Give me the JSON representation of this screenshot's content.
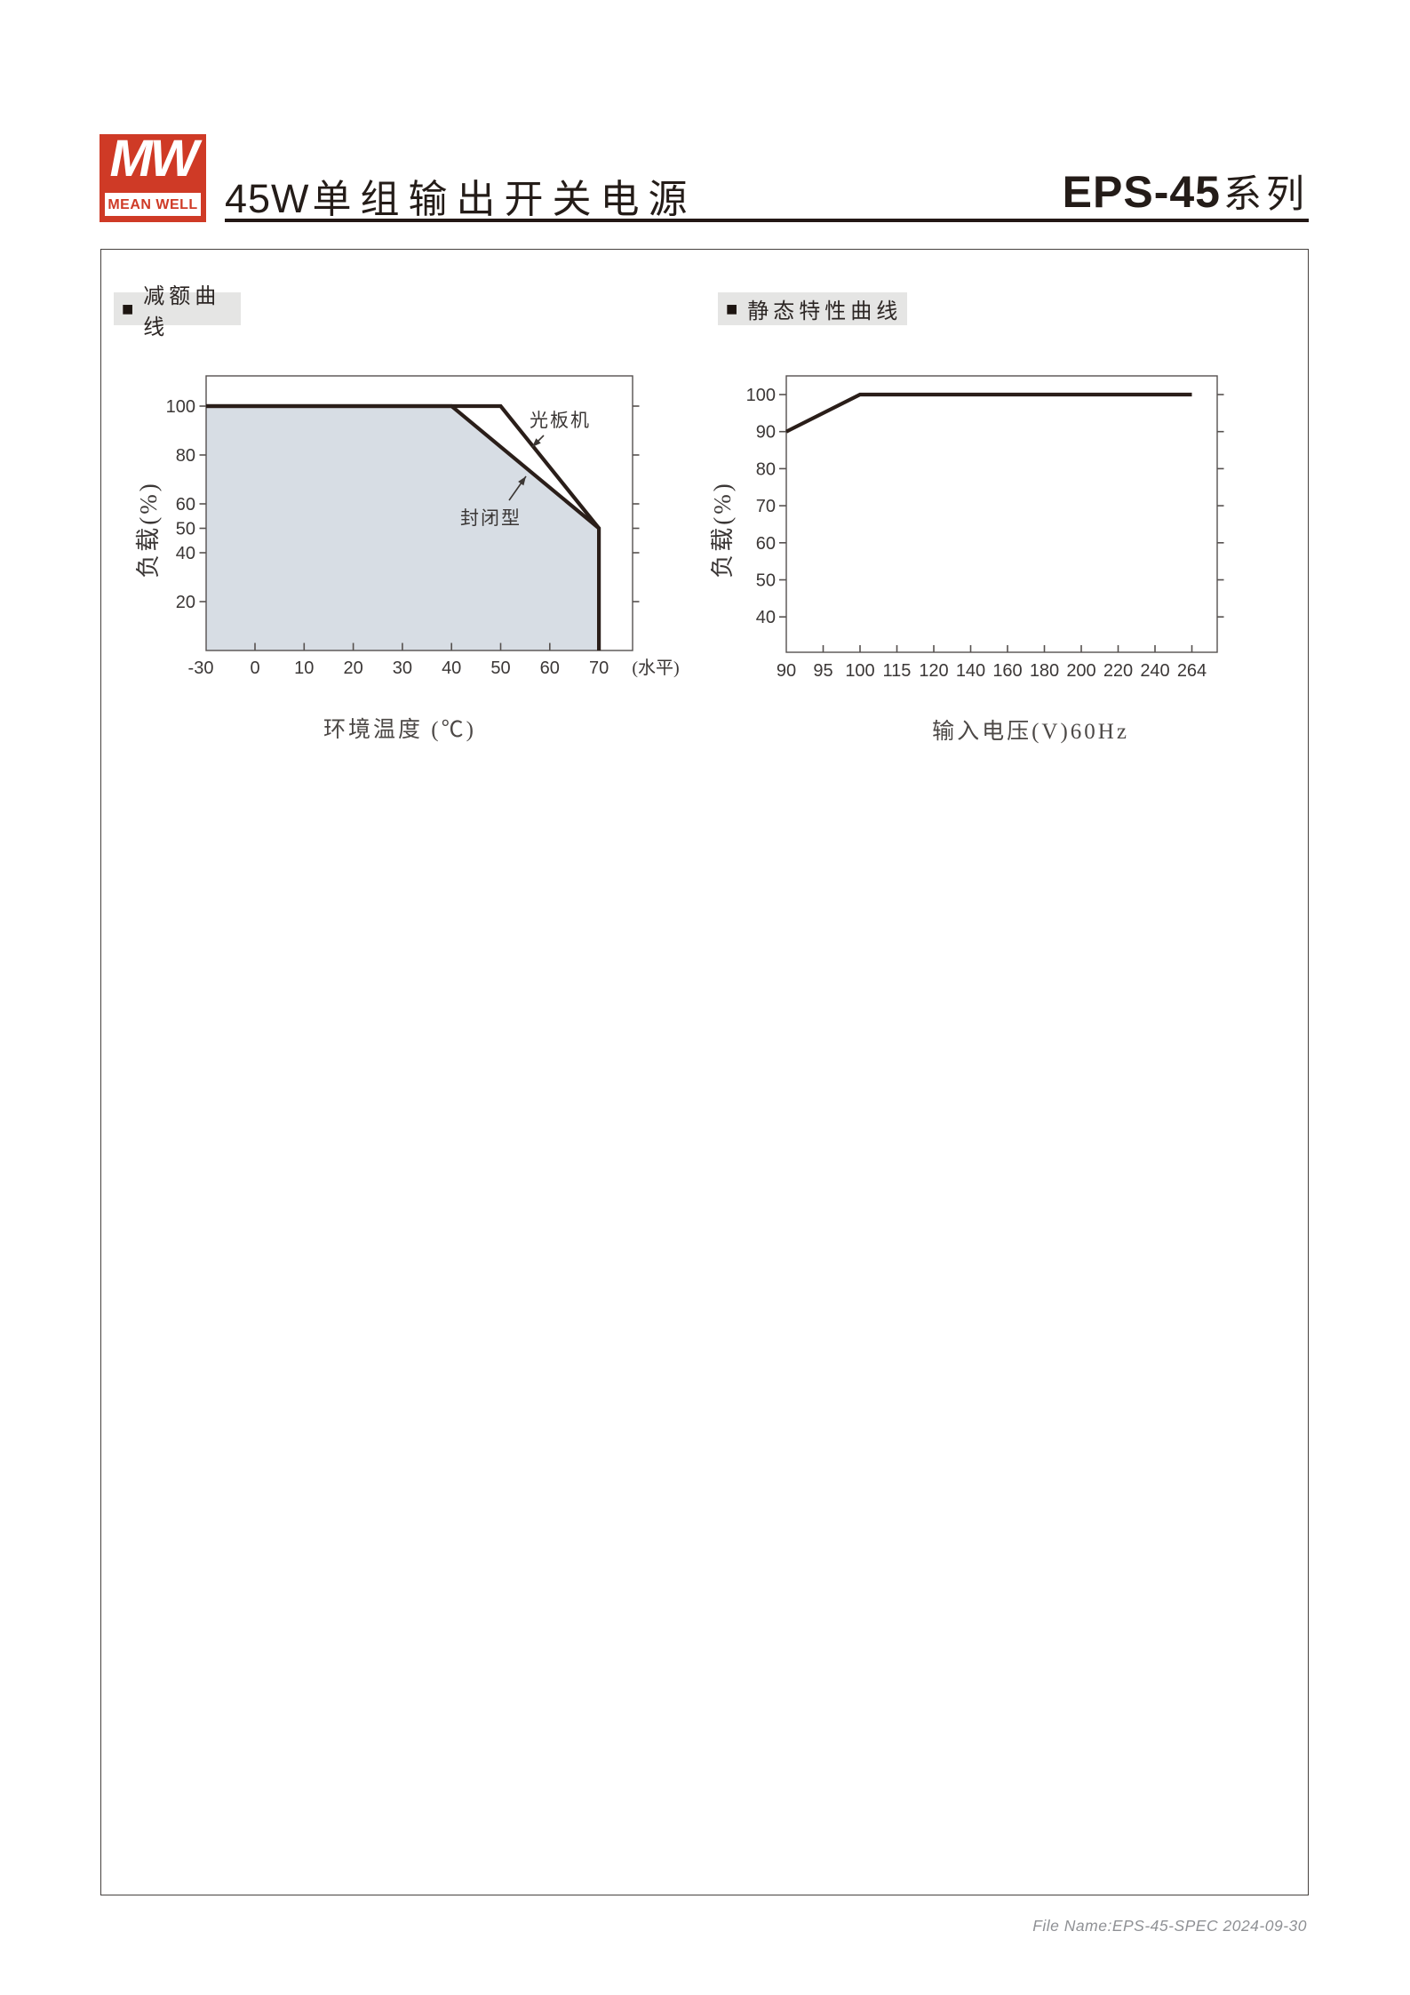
{
  "header": {
    "logo": {
      "monogram": "MW",
      "brand": "MEAN WELL"
    },
    "title_wattage": "45W",
    "title_text": "单组输出开关电源",
    "series_model": "EPS-45",
    "series_suffix": "系列"
  },
  "sections": {
    "bullet": "■",
    "derating_title": "减额曲线",
    "static_title": "静态特性曲线"
  },
  "footer": {
    "file_info": "File Name:EPS-45-SPEC  2024-09-30"
  },
  "colors": {
    "brand_red": "#cf3a26",
    "curve": "#2a1e19",
    "area_fill": "#d7dde4",
    "axis": "#56514f",
    "section_bg": "#e5e5e4",
    "footer_gray": "#8f9195"
  },
  "chart_data": [
    {
      "id": "derating",
      "type": "area",
      "title": "减额曲线",
      "xlabel": "环境温度 (℃)",
      "ylabel": "负载(%)",
      "x_axis_suffix": "(水平)",
      "x_ticks": [
        -30,
        0,
        10,
        20,
        30,
        40,
        50,
        60,
        70
      ],
      "y_ticks": [
        100,
        80,
        60,
        50,
        40,
        20
      ],
      "ylim": [
        0,
        112
      ],
      "grid": false,
      "series": [
        {
          "name": "光板机",
          "points": [
            [
              -30,
              100
            ],
            [
              50,
              100
            ],
            [
              70,
              50
            ]
          ]
        },
        {
          "name": "封闭型",
          "points": [
            [
              -30,
              100
            ],
            [
              40,
              100
            ],
            [
              70,
              50
            ],
            [
              70,
              0
            ]
          ],
          "filled": true
        }
      ]
    },
    {
      "id": "static",
      "type": "line",
      "title": "静态特性曲线",
      "xlabel": "输入电压(V)60Hz",
      "ylabel": "负载(%)",
      "x_categories": [
        "90",
        "95",
        "100",
        "115",
        "120",
        "140",
        "160",
        "180",
        "200",
        "220",
        "240",
        "264"
      ],
      "y_ticks": [
        100,
        90,
        80,
        70,
        60,
        50,
        40
      ],
      "grid": false,
      "series": [
        {
          "points_by_index": [
            [
              0,
              90
            ],
            [
              2,
              100
            ],
            [
              11,
              100
            ]
          ]
        }
      ]
    }
  ]
}
